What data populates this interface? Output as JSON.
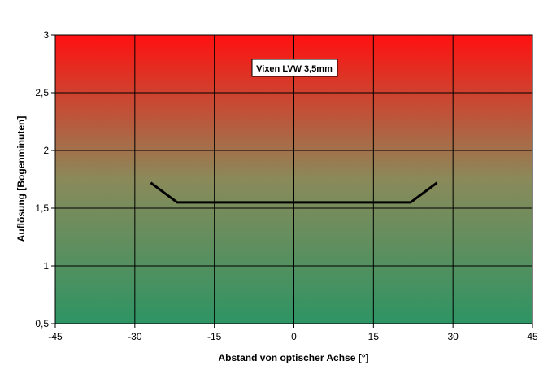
{
  "chart_data": {
    "type": "line",
    "title": "",
    "xlabel": "Abstand von optischer Achse [°]",
    "ylabel": "Auflösung [Bogenminuten]",
    "xlim": [
      -45,
      45
    ],
    "ylim": [
      0.5,
      3
    ],
    "xticks": [
      "-45",
      "-30",
      "-15",
      "0",
      "15",
      "30",
      "45"
    ],
    "yticks": [
      "0,5",
      "1",
      "1,5",
      "2",
      "2,5",
      "3"
    ],
    "grid": true,
    "legend_placement": "top-center",
    "background_gradient": {
      "top": "#ff1010",
      "middle": "#8a8a5a",
      "bottom": "#2e9464"
    },
    "series_color": "#000000",
    "series": [
      {
        "name": "Vixen LVW 3,5mm",
        "x": [
          -27,
          -22,
          22,
          27
        ],
        "y": [
          1.72,
          1.55,
          1.55,
          1.72
        ]
      }
    ]
  }
}
